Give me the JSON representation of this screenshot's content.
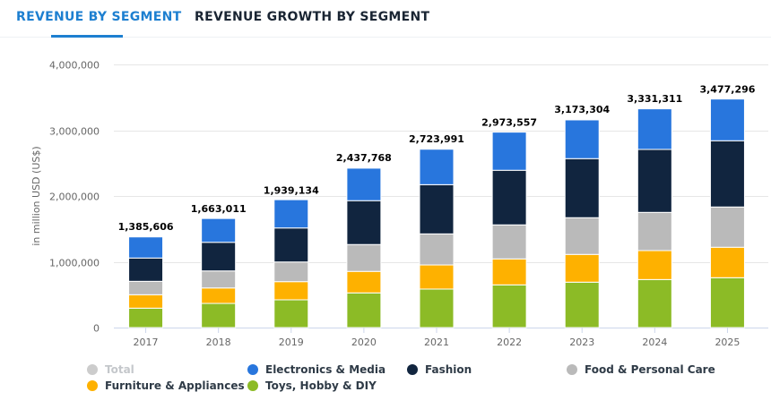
{
  "tabs": [
    {
      "label": "REVENUE BY SEGMENT",
      "active": true
    },
    {
      "label": "REVENUE GROWTH BY SEGMENT",
      "active": false
    }
  ],
  "legend": [
    {
      "label": "Total",
      "color": "#cccccc",
      "disabled": true
    },
    {
      "label": "Electronics & Media",
      "color": "#2876dd"
    },
    {
      "label": "Fashion",
      "color": "#11253f"
    },
    {
      "label": "Food & Personal Care",
      "color": "#bababa"
    },
    {
      "label": "Furniture & Appliances",
      "color": "#feb100"
    },
    {
      "label": "Toys, Hobby & DIY",
      "color": "#8cbb26"
    }
  ],
  "chart_data": {
    "type": "bar",
    "stacked": true,
    "title": "",
    "xlabel": "",
    "ylabel": "in million USD (US$)",
    "ylim": [
      0,
      4000000
    ],
    "yticks": [
      0,
      1000000,
      2000000,
      3000000,
      4000000
    ],
    "ytick_labels": [
      "0",
      "1,000,000",
      "2,000,000",
      "3,000,000",
      "4,000,000"
    ],
    "grid": true,
    "legend_position": "bottom",
    "categories": [
      "2017",
      "2018",
      "2019",
      "2020",
      "2021",
      "2022",
      "2023",
      "2024",
      "2025"
    ],
    "totals": [
      1385606,
      1663011,
      1939134,
      2437768,
      2723991,
      2973557,
      3173304,
      3331311,
      3477296
    ],
    "total_labels": [
      "1,385,606",
      "1,663,011",
      "1,939,134",
      "2,437,768",
      "2,723,991",
      "2,973,557",
      "3,173,304",
      "3,331,311",
      "3,477,296"
    ],
    "series": [
      {
        "name": "Toys, Hobby & DIY",
        "color": "#8cbb26",
        "values": [
          295000,
          367000,
          422000,
          527000,
          585000,
          649000,
          690000,
          730000,
          758000
        ]
      },
      {
        "name": "Furniture & Appliances",
        "color": "#feb100",
        "values": [
          204000,
          235000,
          276000,
          327000,
          367000,
          395000,
          422000,
          440000,
          463000
        ]
      },
      {
        "name": "Food & Personal Care",
        "color": "#bababa",
        "values": [
          204000,
          259000,
          299000,
          408000,
          472000,
          517000,
          558000,
          581000,
          612000
        ]
      },
      {
        "name": "Fashion",
        "color": "#11253f",
        "values": [
          354000,
          435000,
          517000,
          667000,
          748000,
          830000,
          898000,
          957000,
          1007000
        ]
      },
      {
        "name": "Electronics & Media",
        "color": "#2876dd",
        "values": [
          321000,
          362000,
          430000,
          494000,
          539000,
          580000,
          589000,
          617000,
          634000
        ]
      }
    ]
  }
}
